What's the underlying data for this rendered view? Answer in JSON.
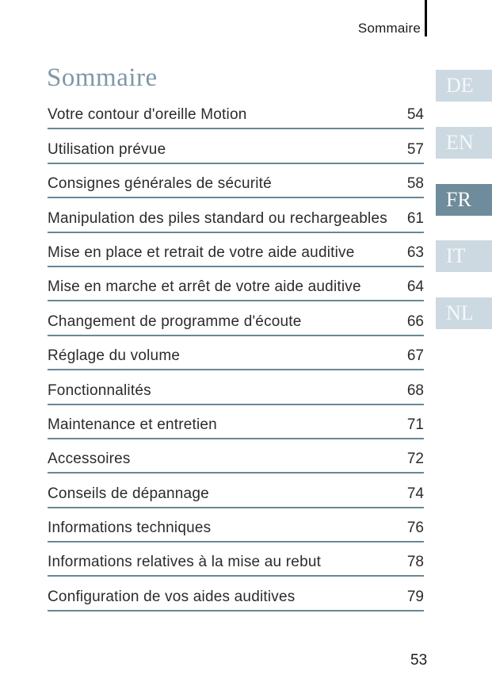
{
  "header": {
    "running_title": "Sommaire"
  },
  "title": "Sommaire",
  "toc": {
    "entries": [
      {
        "label": "Votre contour d'oreille Motion",
        "page": "54"
      },
      {
        "label": "Utilisation prévue",
        "page": "57"
      },
      {
        "label": "Consignes générales de sécurité",
        "page": "58"
      },
      {
        "label": "Manipulation des piles standard ou rechargeables",
        "page": "61"
      },
      {
        "label": "Mise en place et retrait de votre aide auditive",
        "page": "63"
      },
      {
        "label": "Mise en marche et arrêt de votre aide auditive",
        "page": "64"
      },
      {
        "label": "Changement de programme d'écoute",
        "page": "66"
      },
      {
        "label": "Réglage du volume",
        "page": "67"
      },
      {
        "label": "Fonctionnalités",
        "page": "68"
      },
      {
        "label": "Maintenance et entretien",
        "page": "71"
      },
      {
        "label": "Accessoires",
        "page": "72"
      },
      {
        "label": "Conseils de dépannage",
        "page": "74"
      },
      {
        "label": "Informations techniques",
        "page": "76"
      },
      {
        "label": "Informations relatives à la mise au rebut",
        "page": "78"
      },
      {
        "label": "Configuration de vos aides auditives",
        "page": "79"
      }
    ]
  },
  "language_tabs": [
    {
      "label": "DE",
      "active": false
    },
    {
      "label": "EN",
      "active": false
    },
    {
      "label": "FR",
      "active": true
    },
    {
      "label": "IT",
      "active": false
    },
    {
      "label": "NL",
      "active": false
    }
  ],
  "footer": {
    "page_number": "53"
  },
  "colors": {
    "title_text": "#7E98A6",
    "toc_rule": "#6A8795",
    "tab_inactive_bg": "#CCD9E1",
    "tab_active_bg": "#6E8C9B",
    "tab_text": "#F4F8FA",
    "body_text": "#2B2B2B"
  }
}
